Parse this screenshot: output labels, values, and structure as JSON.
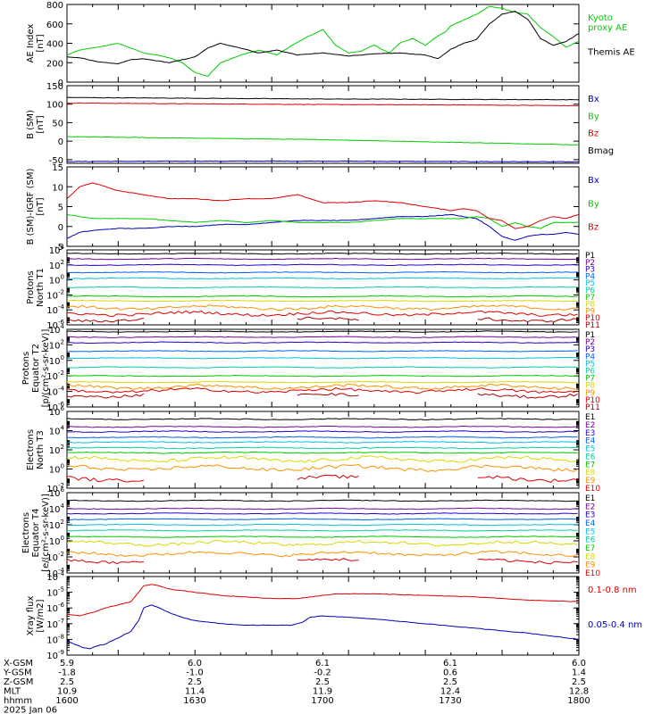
{
  "colors": {
    "black": "#000000",
    "red": "#dd0000",
    "green": "#00cc00",
    "blue": "#0000bb",
    "channels": [
      "#000000",
      "#7a0099",
      "#2a00c8",
      "#0060ff",
      "#00c0e0",
      "#00d0a0",
      "#00c800",
      "#d8d800",
      "#ff9000",
      "#e00000",
      "#b00000"
    ]
  },
  "footer": {
    "rows": [
      {
        "label": "X-GSM",
        "values": [
          "5.9",
          "6.0",
          "6.1",
          "6.1",
          "6.0"
        ]
      },
      {
        "label": "Y-GSM",
        "values": [
          "-1.8",
          "-1.0",
          "-0.2",
          "0.6",
          "1.4"
        ]
      },
      {
        "label": "Z-GSM",
        "values": [
          "2.5",
          "2.5",
          "2.5",
          "2.5",
          "2.5"
        ]
      },
      {
        "label": "MLT",
        "values": [
          "10.9",
          "11.4",
          "11.9",
          "12.4",
          "12.8"
        ]
      },
      {
        "label": "hhmm",
        "values": [
          "1600",
          "1630",
          "1700",
          "1730",
          "1800"
        ]
      }
    ],
    "date": "2025 Jan 06"
  },
  "chart_data": [
    {
      "id": "ae",
      "type": "line",
      "ylabel": [
        "AE Index",
        "[nT]"
      ],
      "scale": "linear",
      "ylim": [
        0,
        800
      ],
      "yticks": [
        "0",
        "200",
        "400",
        "600",
        "800"
      ],
      "xlim": [
        1600,
        1800
      ],
      "legend": [
        {
          "text": [
            "Kyoto",
            "proxy AE"
          ],
          "color": "#00cc00"
        },
        {
          "text": [
            "Themis AE"
          ],
          "color": "#000000"
        }
      ],
      "series": [
        {
          "name": "Kyoto proxy AE",
          "color": "#00cc00",
          "x": [
            1600,
            1605,
            1612,
            1620,
            1630,
            1635,
            1640,
            1645,
            1650,
            1655,
            1660,
            1668,
            1675,
            1682,
            1688,
            1695,
            1700,
            1705,
            1710,
            1715,
            1720,
            1726,
            1730,
            1735,
            1740,
            1744,
            1748,
            1750,
            1755,
            1760,
            1765,
            1770,
            1775,
            1780,
            1785,
            1790,
            1795,
            1800
          ],
          "y": [
            280,
            330,
            360,
            400,
            300,
            280,
            250,
            200,
            100,
            60,
            200,
            280,
            330,
            280,
            380,
            480,
            540,
            380,
            300,
            320,
            380,
            300,
            400,
            450,
            380,
            460,
            520,
            580,
            640,
            700,
            780,
            760,
            720,
            700,
            560,
            470,
            360,
            420
          ]
        },
        {
          "name": "Themis AE",
          "color": "#000000",
          "x": [
            1600,
            1605,
            1610,
            1615,
            1620,
            1625,
            1630,
            1640,
            1645,
            1650,
            1655,
            1660,
            1668,
            1675,
            1682,
            1690,
            1700,
            1710,
            1720,
            1730,
            1740,
            1745,
            1750,
            1755,
            1760,
            1765,
            1770,
            1775,
            1780,
            1785,
            1790,
            1795,
            1800
          ],
          "y": [
            260,
            250,
            220,
            200,
            190,
            230,
            240,
            200,
            230,
            260,
            350,
            400,
            350,
            300,
            330,
            280,
            300,
            270,
            290,
            300,
            280,
            240,
            340,
            400,
            440,
            600,
            700,
            730,
            650,
            450,
            380,
            420,
            500
          ]
        }
      ]
    },
    {
      "id": "bsm",
      "type": "line",
      "ylabel": [
        "B (SM)",
        "[nT]"
      ],
      "scale": "linear",
      "ylim": [
        -60,
        150
      ],
      "yticks": [
        "-50",
        "0",
        "50",
        "100",
        "150"
      ],
      "ytickvals": [
        -50,
        0,
        50,
        100,
        150
      ],
      "xlim": [
        1600,
        1800
      ],
      "legend": [
        {
          "text": [
            "Bx"
          ],
          "color": "#0000bb"
        },
        {
          "text": [
            "By"
          ],
          "color": "#00cc00"
        },
        {
          "text": [
            "Bz"
          ],
          "color": "#dd0000"
        },
        {
          "text": [
            "Bmag"
          ],
          "color": "#000000"
        }
      ],
      "series": [
        {
          "name": "Bx",
          "color": "#0000bb",
          "x": [
            1600,
            1650,
            1700,
            1750,
            1800
          ],
          "y": [
            -55,
            -54,
            -54,
            -55,
            -56
          ]
        },
        {
          "name": "By",
          "color": "#00cc00",
          "x": [
            1600,
            1650,
            1700,
            1750,
            1800
          ],
          "y": [
            12,
            8,
            4,
            -3,
            -10
          ]
        },
        {
          "name": "Bz",
          "color": "#dd0000",
          "x": [
            1600,
            1650,
            1700,
            1750,
            1800
          ],
          "y": [
            103,
            101,
            99,
            98,
            96
          ]
        },
        {
          "name": "Bmag",
          "color": "#000000",
          "x": [
            1600,
            1650,
            1700,
            1750,
            1800
          ],
          "y": [
            118,
            116,
            114,
            113,
            112
          ]
        }
      ]
    },
    {
      "id": "bdiff",
      "type": "line",
      "ylabel": [
        "B (SM)-IGRF (SM)",
        "[nT]"
      ],
      "scale": "linear",
      "ylim": [
        -5,
        15
      ],
      "yticks": [
        "-5",
        "0",
        "5",
        "10",
        "15"
      ],
      "ytickvals": [
        -5,
        0,
        5,
        10,
        15
      ],
      "xlim": [
        1600,
        1800
      ],
      "legend": [
        {
          "text": [
            "Bx"
          ],
          "color": "#0000bb"
        },
        {
          "text": [
            "By"
          ],
          "color": "#00cc00"
        },
        {
          "text": [
            "Bz"
          ],
          "color": "#dd0000"
        }
      ],
      "series": [
        {
          "name": "Bx",
          "color": "#0000bb",
          "x": [
            1600,
            1605,
            1610,
            1620,
            1630,
            1640,
            1650,
            1660,
            1670,
            1680,
            1690,
            1700,
            1710,
            1720,
            1730,
            1740,
            1750,
            1755,
            1760,
            1765,
            1770,
            1775,
            1780,
            1785,
            1790,
            1795,
            1800
          ],
          "y": [
            -3,
            -1.5,
            -1,
            -0.5,
            -0.5,
            0,
            0,
            0.5,
            0.5,
            1,
            1.5,
            1.5,
            1.5,
            2,
            2.5,
            2.5,
            3,
            2.5,
            2,
            0,
            -2.5,
            -3.5,
            -2.5,
            -2,
            -2,
            -1.5,
            -2
          ]
        },
        {
          "name": "By",
          "color": "#00cc00",
          "x": [
            1600,
            1605,
            1610,
            1620,
            1630,
            1640,
            1650,
            1660,
            1670,
            1680,
            1690,
            1700,
            1710,
            1720,
            1730,
            1740,
            1750,
            1755,
            1760,
            1765,
            1770,
            1775,
            1780,
            1785,
            1790,
            1795,
            1800
          ],
          "y": [
            3,
            2.5,
            2,
            2,
            2,
            1.5,
            1,
            1.5,
            1,
            1.5,
            1,
            1,
            1,
            1.5,
            2,
            2,
            2,
            2,
            2.5,
            2,
            0,
            1,
            0,
            -0.5,
            1,
            1,
            1
          ]
        },
        {
          "name": "Bz",
          "color": "#dd0000",
          "x": [
            1600,
            1605,
            1610,
            1615,
            1620,
            1630,
            1640,
            1650,
            1660,
            1670,
            1680,
            1690,
            1700,
            1710,
            1720,
            1730,
            1740,
            1750,
            1755,
            1760,
            1765,
            1770,
            1775,
            1780,
            1785,
            1790,
            1795,
            1800
          ],
          "y": [
            7,
            10,
            11,
            10,
            9,
            8,
            7,
            7,
            6.5,
            7,
            7,
            8,
            6,
            6,
            6.5,
            6,
            5,
            4,
            4.5,
            4,
            2,
            1.5,
            -0.5,
            0,
            1.5,
            2.5,
            2,
            3
          ]
        }
      ]
    },
    {
      "id": "pt1",
      "type": "line",
      "ylabel": [
        "Protons",
        "North T1"
      ],
      "scale": "log",
      "ylim": [
        -6,
        4
      ],
      "yticks": [
        "10^-6",
        "10^-4",
        "10^-2",
        "10^0",
        "10^2",
        "10^4"
      ],
      "ytickvals": [
        -6,
        -4,
        -2,
        0,
        2,
        4
      ],
      "xlim": [
        1600,
        1800
      ],
      "legend": [
        {
          "text": [
            "P1"
          ]
        },
        {
          "text": [
            "P2"
          ]
        },
        {
          "text": [
            "P3"
          ]
        },
        {
          "text": [
            "P4"
          ]
        },
        {
          "text": [
            "P5"
          ]
        },
        {
          "text": [
            "P6"
          ]
        },
        {
          "text": [
            "P7"
          ]
        },
        {
          "text": [
            "P8"
          ]
        },
        {
          "text": [
            "P9"
          ]
        },
        {
          "text": [
            "P10"
          ]
        },
        {
          "text": [
            "P11"
          ]
        }
      ],
      "channel_log_levels": [
        3.5,
        2.8,
        2.0,
        1.0,
        0.2,
        -1.0,
        -2.2,
        -2.8,
        -3.7,
        -4.5,
        -5.3
      ]
    },
    {
      "id": "pt2",
      "type": "line",
      "ylabel": [
        "Protons",
        "Equator T2",
        "[p/(cm²-s-sr-keV)]"
      ],
      "scale": "log",
      "ylim": [
        -6,
        4
      ],
      "yticks": [
        "10^-6",
        "10^-4",
        "10^-2",
        "10^0",
        "10^2",
        "10^4"
      ],
      "ytickvals": [
        -6,
        -4,
        -2,
        0,
        2,
        4
      ],
      "xlim": [
        1600,
        1800
      ],
      "legend": [
        {
          "text": [
            "P1"
          ]
        },
        {
          "text": [
            "P2"
          ]
        },
        {
          "text": [
            "P3"
          ]
        },
        {
          "text": [
            "P4"
          ]
        },
        {
          "text": [
            "P5"
          ]
        },
        {
          "text": [
            "P6"
          ]
        },
        {
          "text": [
            "P7"
          ]
        },
        {
          "text": [
            "P8"
          ]
        },
        {
          "text": [
            "P9"
          ]
        },
        {
          "text": [
            "P10"
          ]
        },
        {
          "text": [
            "P11"
          ]
        }
      ],
      "channel_log_levels": [
        3.7,
        3.0,
        2.3,
        1.2,
        0.3,
        -0.9,
        -2.0,
        -2.8,
        -3.4,
        -3.9,
        -4.5
      ]
    },
    {
      "id": "et3",
      "type": "line",
      "ylabel": [
        "Electrons",
        "North T3"
      ],
      "scale": "log",
      "ylim": [
        -2,
        6
      ],
      "yticks": [
        "10^-2",
        "10^0",
        "10^2",
        "10^4",
        "10^6"
      ],
      "ytickvals": [
        -2,
        0,
        2,
        4,
        6
      ],
      "xlim": [
        1600,
        1800
      ],
      "legend": [
        {
          "text": [
            "E1"
          ]
        },
        {
          "text": [
            "E2"
          ]
        },
        {
          "text": [
            "E3"
          ]
        },
        {
          "text": [
            "E4"
          ]
        },
        {
          "text": [
            "E5"
          ]
        },
        {
          "text": [
            "E6"
          ]
        },
        {
          "text": [
            "E7"
          ]
        },
        {
          "text": [
            "E8"
          ]
        },
        {
          "text": [
            "E9"
          ]
        },
        {
          "text": [
            "E10"
          ]
        }
      ],
      "channel_log_levels": [
        5.2,
        4.4,
        3.9,
        3.3,
        2.8,
        2.2,
        1.7,
        1.0,
        0.1,
        -1.0
      ]
    },
    {
      "id": "et4",
      "type": "line",
      "ylabel": [
        "Electrons",
        "Equator T4",
        "[e/(cm²-s-sr-keV)]"
      ],
      "scale": "log",
      "ylim": [
        -4,
        6
      ],
      "yticks": [
        "10^-4",
        "10^-2",
        "10^0",
        "10^2",
        "10^4",
        "10^6"
      ],
      "ytickvals": [
        -4,
        -2,
        0,
        2,
        4,
        6
      ],
      "xlim": [
        1600,
        1800
      ],
      "legend": [
        {
          "text": [
            "E1"
          ]
        },
        {
          "text": [
            "E2"
          ]
        },
        {
          "text": [
            "E3"
          ]
        },
        {
          "text": [
            "E4"
          ]
        },
        {
          "text": [
            "E5"
          ]
        },
        {
          "text": [
            "E6"
          ]
        },
        {
          "text": [
            "E7"
          ]
        },
        {
          "text": [
            "E8"
          ]
        },
        {
          "text": [
            "E9"
          ]
        },
        {
          "text": [
            "E10"
          ]
        }
      ],
      "channel_log_levels": [
        5.0,
        4.0,
        3.4,
        2.7,
        2.0,
        1.3,
        0.5,
        -0.3,
        -1.6,
        -2.5
      ]
    },
    {
      "id": "xray",
      "type": "line",
      "ylabel": [
        "Xray flux",
        "[W/m2]"
      ],
      "scale": "log",
      "ylim": [
        -9,
        -4
      ],
      "yticks": [
        "10^-9",
        "10^-8",
        "10^-7",
        "10^-6",
        "10^-5",
        "10^-4"
      ],
      "ytickvals": [
        -9,
        -8,
        -7,
        -6,
        -5,
        -4
      ],
      "xlim": [
        1600,
        1800
      ],
      "legend": [
        {
          "text": [
            "0.1-0.8 nm"
          ],
          "color": "#dd0000"
        },
        {
          "text": [
            "0.05-0.4 nm"
          ],
          "color": "#0000bb"
        }
      ],
      "series": [
        {
          "name": "0.1-0.8 nm",
          "color": "#dd0000",
          "x": [
            1600,
            1605,
            1610,
            1615,
            1620,
            1625,
            1628,
            1630,
            1633,
            1636,
            1640,
            1645,
            1650,
            1660,
            1670,
            1680,
            1690,
            1695,
            1700,
            1705,
            1710,
            1720,
            1740,
            1760,
            1780,
            1800
          ],
          "y": [
            -6.4,
            -6.5,
            -6.3,
            -6.0,
            -5.8,
            -5.6,
            -5.0,
            -4.6,
            -4.5,
            -4.6,
            -4.8,
            -4.9,
            -5.0,
            -5.2,
            -5.3,
            -5.4,
            -5.4,
            -5.3,
            -5.2,
            -5.1,
            -5.1,
            -5.1,
            -5.2,
            -5.3,
            -5.5,
            -5.6
          ]
        },
        {
          "name": "0.05-0.4 nm",
          "color": "#0000bb",
          "x": [
            1600,
            1603,
            1606,
            1609,
            1612,
            1615,
            1620,
            1625,
            1628,
            1630,
            1633,
            1636,
            1640,
            1645,
            1650,
            1660,
            1670,
            1680,
            1688,
            1692,
            1695,
            1700,
            1710,
            1720,
            1740,
            1760,
            1780,
            1800
          ],
          "y": [
            -8.1,
            -8.3,
            -8.5,
            -8.6,
            -8.4,
            -8.3,
            -7.9,
            -7.5,
            -6.8,
            -6.0,
            -5.8,
            -6.0,
            -6.3,
            -6.6,
            -6.8,
            -7.0,
            -7.1,
            -7.1,
            -7.1,
            -6.9,
            -6.6,
            -6.5,
            -6.6,
            -6.7,
            -7.0,
            -7.3,
            -7.6,
            -8.0
          ]
        }
      ]
    }
  ]
}
